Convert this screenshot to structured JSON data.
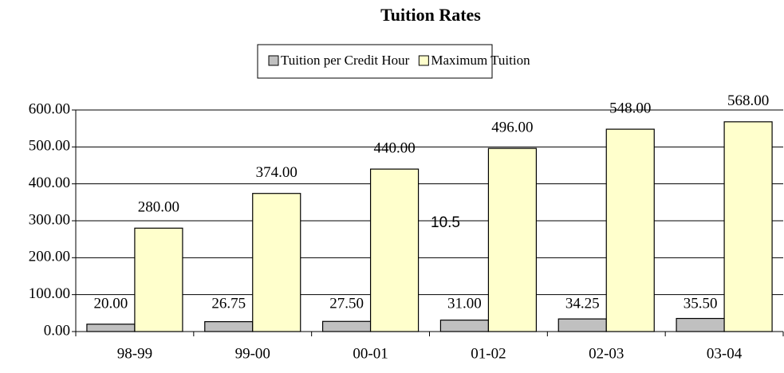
{
  "chart_data": {
    "type": "bar",
    "title": "Tuition Rates",
    "categories": [
      "98-99",
      "99-00",
      "00-01",
      "01-02",
      "02-03",
      "03-04"
    ],
    "series": [
      {
        "name": "Tuition per Credit Hour",
        "color": "#c0c0c0",
        "values": [
          20,
          26.75,
          27.5,
          31,
          34.25,
          35.5
        ],
        "value_labels": [
          "20.00",
          "26.75",
          "27.50",
          "31.00",
          "34.25",
          "35.50"
        ]
      },
      {
        "name": "Maximum Tuition",
        "color": "#ffffcc",
        "values": [
          280,
          374,
          440,
          496,
          548,
          568
        ],
        "value_labels": [
          "280.00",
          "374.00",
          "440.00",
          "496.00",
          "548.00",
          "568.00"
        ]
      }
    ],
    "ylim": [
      0,
      600
    ],
    "yticks": [
      {
        "value": 0,
        "label": "0.00"
      },
      {
        "value": 100,
        "label": "100.00"
      },
      {
        "value": 200,
        "label": "200.00"
      },
      {
        "value": 300,
        "label": "300.00"
      },
      {
        "value": 400,
        "label": "400.00"
      },
      {
        "value": 500,
        "label": "500.00"
      },
      {
        "value": 600,
        "label": "600.00"
      }
    ],
    "grid": true,
    "legend": "top",
    "annotations": [
      "10.5"
    ]
  }
}
